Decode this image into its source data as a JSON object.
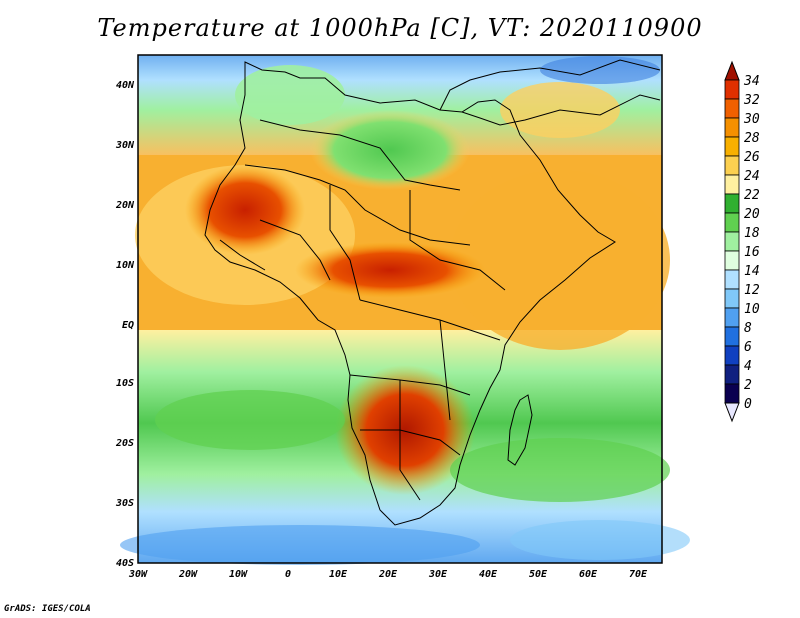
{
  "title": "Temperature at 1000hPa [C], VT: 2020110900",
  "credit": "GrADS: IGES/COLA",
  "map": {
    "projection": "latlon",
    "lon_range": [
      -30,
      75
    ],
    "lat_range": [
      -40,
      45
    ],
    "lon_ticks": [
      "30W",
      "20W",
      "10W",
      "0",
      "10E",
      "20E",
      "30E",
      "40E",
      "50E",
      "60E",
      "70E"
    ],
    "lat_ticks": [
      "40N",
      "30N",
      "20N",
      "10N",
      "EQ",
      "10S",
      "20S",
      "30S",
      "40S"
    ],
    "variable": "Temperature at 1000hPa",
    "units": "C",
    "valid_time": "2020110900"
  },
  "colorbar": {
    "levels": [
      "34",
      "32",
      "30",
      "28",
      "26",
      "24",
      "22",
      "20",
      "18",
      "16",
      "14",
      "12",
      "10",
      "8",
      "6",
      "4",
      "2",
      "0"
    ],
    "colors": [
      "#a01000",
      "#e03000",
      "#f06000",
      "#f59000",
      "#f8b000",
      "#fcd050",
      "#fff0a0",
      "#30b030",
      "#60d050",
      "#a0f0a0",
      "#e0ffe0",
      "#b0e0ff",
      "#80c8f8",
      "#50a0f0",
      "#2070e0",
      "#1040c0",
      "#102080",
      "#0a0050"
    ]
  }
}
